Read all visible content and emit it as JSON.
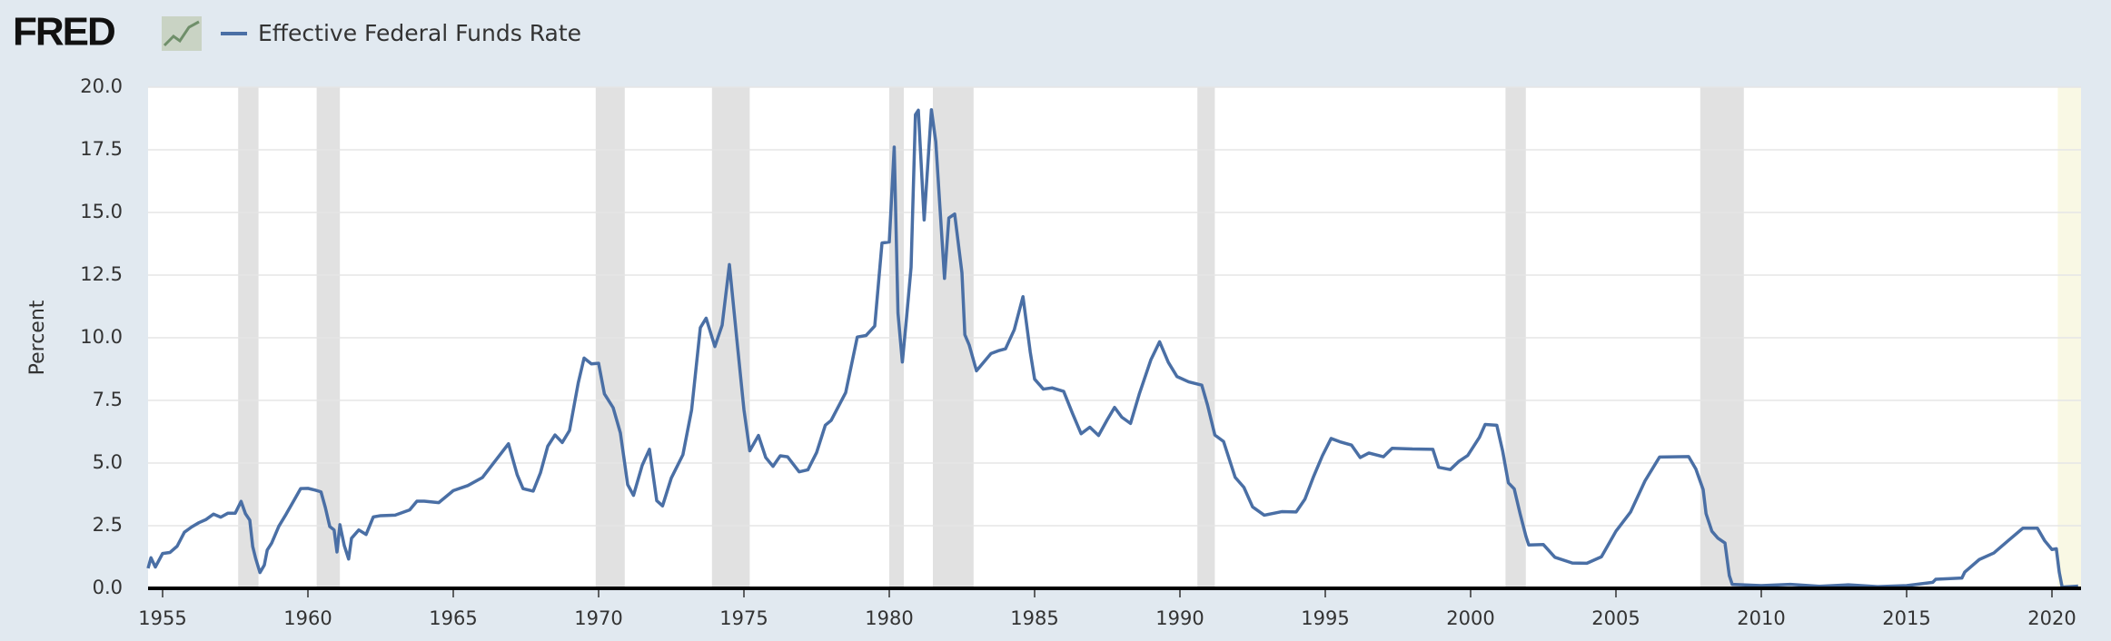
{
  "header": {
    "logo": "FRED"
  },
  "chart_data": {
    "type": "line",
    "ylabel": "Percent",
    "xlim": [
      1954.5,
      2021.0
    ],
    "xticks": [
      1955,
      1960,
      1965,
      1970,
      1975,
      1980,
      1985,
      1990,
      1995,
      2000,
      2005,
      2010,
      2015,
      2020
    ],
    "ylim": [
      0,
      20
    ],
    "yticks": [
      {
        "value": 0,
        "label": "0.0"
      },
      2.5,
      {
        "value": 5,
        "label": "5.0"
      },
      7.5,
      {
        "value": 10,
        "label": "10.0"
      },
      12.5,
      {
        "value": 15,
        "label": "15.0"
      },
      17.5,
      {
        "value": 20,
        "label": "20.0"
      }
    ],
    "grid": true,
    "recession_color": "#e1e1e1",
    "recessions": [
      [
        1957.6,
        1958.3
      ],
      [
        1960.3,
        1961.1
      ],
      [
        1969.9,
        1970.9
      ],
      [
        1973.9,
        1975.2
      ],
      [
        1980.0,
        1980.5
      ],
      [
        1981.5,
        1982.9
      ],
      [
        1990.6,
        1991.2
      ],
      [
        2001.2,
        2001.9
      ],
      [
        2007.9,
        2009.4
      ]
    ],
    "current_period": [
      2020.2,
      2021.0
    ],
    "current_period_color": "#f9f8e4",
    "x": [
      1954.5,
      1954.6,
      1954.75,
      1955.0,
      1955.25,
      1955.5,
      1955.75,
      1956.0,
      1956.25,
      1956.5,
      1956.75,
      1957.0,
      1957.25,
      1957.5,
      1957.7,
      1957.85,
      1958.0,
      1958.1,
      1958.2,
      1958.35,
      1958.5,
      1958.6,
      1958.75,
      1959.0,
      1959.25,
      1959.5,
      1959.75,
      1960.0,
      1960.25,
      1960.45,
      1960.6,
      1960.75,
      1960.9,
      1961.0,
      1961.1,
      1961.25,
      1961.4,
      1961.5,
      1961.75,
      1962.0,
      1962.25,
      1962.5,
      1963.0,
      1963.5,
      1963.75,
      1964.0,
      1964.5,
      1965.0,
      1965.5,
      1966.0,
      1966.5,
      1966.9,
      1967.2,
      1967.4,
      1967.75,
      1968.0,
      1968.25,
      1968.5,
      1968.75,
      1969.0,
      1969.3,
      1969.5,
      1969.75,
      1970.0,
      1970.2,
      1970.5,
      1970.75,
      1971.0,
      1971.2,
      1971.5,
      1971.75,
      1972.0,
      1972.2,
      1972.5,
      1972.9,
      1973.2,
      1973.5,
      1973.7,
      1974.0,
      1974.25,
      1974.5,
      1974.75,
      1975.0,
      1975.2,
      1975.5,
      1975.75,
      1976.0,
      1976.25,
      1976.5,
      1976.9,
      1977.2,
      1977.5,
      1977.8,
      1978.0,
      1978.5,
      1978.9,
      1979.2,
      1979.5,
      1979.75,
      1980.0,
      1980.17,
      1980.3,
      1980.45,
      1980.6,
      1980.75,
      1980.9,
      1981.0,
      1981.2,
      1981.45,
      1981.6,
      1981.75,
      1981.9,
      1982.05,
      1982.25,
      1982.5,
      1982.6,
      1982.75,
      1983.0,
      1983.5,
      1983.75,
      1984.0,
      1984.3,
      1984.6,
      1984.85,
      1985.0,
      1985.3,
      1985.6,
      1986.0,
      1986.3,
      1986.6,
      1986.9,
      1987.2,
      1987.5,
      1987.75,
      1988.0,
      1988.3,
      1988.6,
      1989.0,
      1989.3,
      1989.6,
      1989.9,
      1990.3,
      1990.75,
      1990.95,
      1991.2,
      1991.5,
      1991.9,
      1992.2,
      1992.5,
      1992.9,
      1993.5,
      1994.0,
      1994.3,
      1994.6,
      1994.9,
      1995.2,
      1995.5,
      1995.9,
      1996.2,
      1996.5,
      1997.0,
      1997.3,
      1998.0,
      1998.7,
      1998.9,
      1999.3,
      1999.6,
      1999.9,
      2000.3,
      2000.5,
      2000.9,
      2001.1,
      2001.3,
      2001.5,
      2001.7,
      2001.9,
      2002.0,
      2002.5,
      2002.9,
      2003.5,
      2004.0,
      2004.5,
      2005.0,
      2005.5,
      2006.0,
      2006.5,
      2007.5,
      2007.75,
      2008.0,
      2008.1,
      2008.3,
      2008.5,
      2008.75,
      2008.9,
      2009.0,
      2010.0,
      2011.0,
      2012.0,
      2013.0,
      2014.0,
      2015.0,
      2015.9,
      2016.0,
      2016.9,
      2017.0,
      2017.5,
      2018.0,
      2018.5,
      2019.0,
      2019.5,
      2019.75,
      2020.0,
      2020.15,
      2020.25,
      2020.35,
      2020.9
    ],
    "series": [
      {
        "name": "Effective Federal Funds Rate",
        "color": "#4a6fa5",
        "values": [
          0.8,
          1.22,
          0.85,
          1.39,
          1.43,
          1.68,
          2.24,
          2.45,
          2.62,
          2.75,
          2.96,
          2.84,
          3.0,
          3.0,
          3.47,
          2.98,
          2.72,
          1.67,
          1.2,
          0.63,
          0.93,
          1.53,
          1.8,
          2.48,
          2.96,
          3.47,
          3.98,
          3.99,
          3.92,
          3.85,
          3.22,
          2.47,
          2.33,
          1.45,
          2.54,
          1.71,
          1.17,
          2.0,
          2.33,
          2.15,
          2.85,
          2.9,
          2.92,
          3.13,
          3.48,
          3.48,
          3.42,
          3.9,
          4.1,
          4.42,
          5.17,
          5.77,
          4.53,
          3.98,
          3.88,
          4.61,
          5.67,
          6.12,
          5.82,
          6.3,
          8.2,
          9.19,
          8.96,
          8.98,
          7.76,
          7.21,
          6.2,
          4.14,
          3.71,
          4.91,
          5.55,
          3.5,
          3.29,
          4.4,
          5.33,
          7.12,
          10.4,
          10.78,
          9.65,
          10.5,
          12.92,
          10.0,
          7.13,
          5.49,
          6.1,
          5.22,
          4.87,
          5.29,
          5.25,
          4.65,
          4.73,
          5.42,
          6.51,
          6.7,
          7.81,
          10.03,
          10.09,
          10.47,
          13.78,
          13.82,
          17.61,
          10.98,
          9.03,
          10.87,
          12.81,
          18.9,
          19.08,
          14.7,
          19.1,
          17.82,
          15.08,
          12.37,
          14.78,
          14.94,
          12.59,
          10.12,
          9.71,
          8.68,
          9.37,
          9.48,
          9.56,
          10.32,
          11.64,
          9.43,
          8.35,
          7.95,
          8.0,
          7.86,
          6.99,
          6.17,
          6.43,
          6.1,
          6.73,
          7.22,
          6.83,
          6.58,
          7.75,
          9.12,
          9.84,
          9.02,
          8.45,
          8.24,
          8.11,
          7.31,
          6.12,
          5.86,
          4.43,
          4.03,
          3.25,
          2.92,
          3.06,
          3.05,
          3.56,
          4.47,
          5.29,
          5.98,
          5.85,
          5.72,
          5.22,
          5.4,
          5.25,
          5.59,
          5.56,
          5.55,
          4.83,
          4.74,
          5.07,
          5.3,
          6.02,
          6.54,
          6.51,
          5.49,
          4.21,
          3.97,
          2.99,
          2.09,
          1.73,
          1.75,
          1.24,
          1.01,
          1.0,
          1.26,
          2.28,
          3.04,
          4.29,
          5.24,
          5.26,
          4.76,
          3.94,
          2.98,
          2.28,
          2.01,
          1.81,
          0.51,
          0.16,
          0.11,
          0.16,
          0.08,
          0.14,
          0.07,
          0.11,
          0.24,
          0.36,
          0.41,
          0.65,
          1.15,
          1.41,
          1.91,
          2.4,
          2.4,
          1.9,
          1.55,
          1.58,
          0.65,
          0.05,
          0.09
        ]
      }
    ]
  }
}
